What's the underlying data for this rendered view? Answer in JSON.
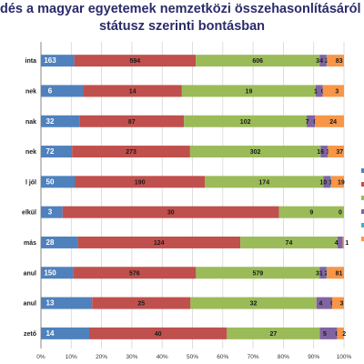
{
  "title_line1": "dés a magyar egyetemek nemzetközi összehasonlításáról – szociális helyze",
  "title_line2": "státusz szerinti bontásban",
  "colors": [
    "#4f81bd",
    "#c0504d",
    "#9bbb59",
    "#8064a2",
    "#4bacc6",
    "#f79646"
  ],
  "chart_data": {
    "type": "bar",
    "orientation": "horizontal",
    "stacked": "percent",
    "title": "dés a magyar egyetemek nemzetközi összehasonlításáról – szociális helyze státusz szerinti bontásban",
    "xlim": [
      0,
      100
    ],
    "x_ticks": [
      "0%",
      "10%",
      "20%",
      "30%",
      "40%",
      "50%",
      "60%",
      "70%",
      "80%",
      "90%",
      "100%"
    ],
    "categories": [
      "inta",
      "nek",
      "nak",
      "nek",
      "l jól",
      "elkül",
      "más",
      "anul",
      "anul",
      "zető"
    ],
    "segments": [
      [
        163,
        594,
        606,
        34,
        2,
        83
      ],
      [
        6,
        14,
        19,
        1,
        0,
        3
      ],
      [
        32,
        87,
        102,
        7,
        0,
        24
      ],
      [
        72,
        273,
        302,
        16,
        1,
        37
      ],
      [
        50,
        190,
        174,
        10,
        1,
        19
      ],
      [
        3,
        30,
        9,
        0,
        0,
        0
      ],
      [
        28,
        124,
        74,
        4,
        0,
        1
      ],
      [
        150,
        576,
        579,
        31,
        2,
        81
      ],
      [
        13,
        25,
        32,
        4,
        0,
        3
      ],
      [
        14,
        40,
        27,
        5,
        0,
        2
      ]
    ],
    "labels": [
      [
        "163",
        "594",
        "606",
        "34",
        "2",
        "83"
      ],
      [
        "6",
        "14",
        "19",
        "1",
        "0",
        "3"
      ],
      [
        "32",
        "87",
        "102",
        "7",
        "0",
        "24"
      ],
      [
        "72",
        "273",
        "302",
        "16",
        "1",
        "37"
      ],
      [
        "50",
        "190",
        "174",
        "10",
        "1",
        "19"
      ],
      [
        "3",
        "30",
        "9",
        "0",
        "",
        ""
      ],
      [
        "28",
        "124",
        "74",
        "4",
        "",
        "1"
      ],
      [
        "150",
        "576",
        "579",
        "31",
        "2",
        "81"
      ],
      [
        "13",
        "25",
        "32",
        "4",
        "0",
        "3"
      ],
      [
        "14",
        "40",
        "27",
        "5",
        "0",
        "2"
      ]
    ],
    "grid": true,
    "legend": "right (cut off)"
  }
}
